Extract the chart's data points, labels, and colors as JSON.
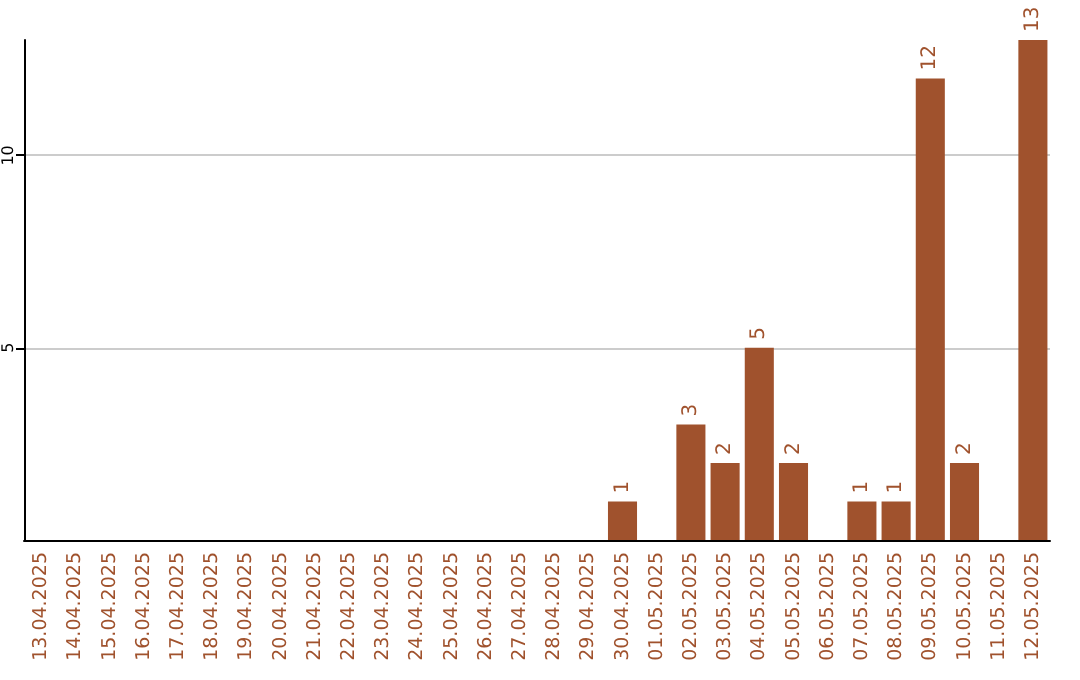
{
  "chart_data": {
    "type": "bar",
    "categories": [
      "13.04.2025",
      "14.04.2025",
      "15.04.2025",
      "16.04.2025",
      "17.04.2025",
      "18.04.2025",
      "19.04.2025",
      "20.04.2025",
      "21.04.2025",
      "22.04.2025",
      "23.04.2025",
      "24.04.2025",
      "25.04.2025",
      "26.04.2025",
      "27.04.2025",
      "28.04.2025",
      "29.04.2025",
      "30.04.2025",
      "01.05.2025",
      "02.05.2025",
      "03.05.2025",
      "04.05.2025",
      "05.05.2025",
      "06.05.2025",
      "07.05.2025",
      "08.05.2025",
      "09.05.2025",
      "10.05.2025",
      "11.05.2025",
      "12.05.2025"
    ],
    "values": [
      0,
      0,
      0,
      0,
      0,
      0,
      0,
      0,
      0,
      0,
      0,
      0,
      0,
      0,
      0,
      0,
      0,
      1,
      0,
      3,
      2,
      5,
      2,
      0,
      1,
      1,
      12,
      2,
      0,
      13
    ],
    "value_labels": [
      null,
      null,
      null,
      null,
      null,
      null,
      null,
      null,
      null,
      null,
      null,
      null,
      null,
      null,
      null,
      null,
      null,
      "1",
      null,
      "3",
      "2",
      "5",
      "2",
      null,
      "1",
      "1",
      "12",
      "2",
      null,
      "13"
    ],
    "color": "#a0522d",
    "ylim": [
      0,
      13
    ],
    "yticks": [
      5,
      10
    ],
    "grid": "y"
  }
}
